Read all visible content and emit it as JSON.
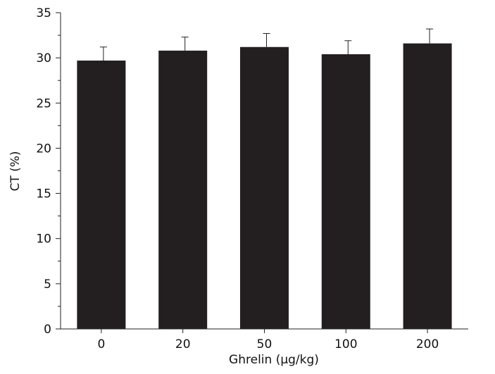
{
  "chart_data": {
    "type": "bar",
    "categories": [
      "0",
      "20",
      "50",
      "100",
      "200"
    ],
    "values": [
      29.7,
      30.8,
      31.2,
      30.4,
      31.6
    ],
    "errors": [
      1.5,
      1.5,
      1.5,
      1.5,
      1.6
    ],
    "xlabel": "Ghrelin (μg/kg)",
    "ylabel": "CT (%)",
    "ylim": [
      0,
      35
    ],
    "yticks": [
      "0",
      "5",
      "10",
      "15",
      "20",
      "25",
      "30",
      "35"
    ],
    "bar_color": "#231f20",
    "grid": false
  }
}
